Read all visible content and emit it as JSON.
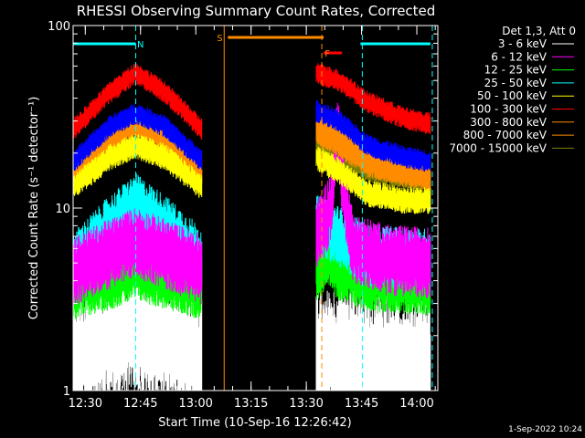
{
  "chart_data": {
    "type": "line",
    "title": "RHESSI Observing Summary Count Rates, Corrected",
    "xlabel": "Start Time (10-Sep-16 12:26:42)",
    "ylabel": "Corrected Count Rate (s⁻¹ detector⁻¹)",
    "yscale": "log",
    "ylim": [
      1,
      100
    ],
    "xlim_minutes": [
      0,
      99
    ],
    "x_ticks": [
      {
        "label": "12:30",
        "min": 3.3
      },
      {
        "label": "12:45",
        "min": 18.3
      },
      {
        "label": "13:00",
        "min": 33.3
      },
      {
        "label": "13:15",
        "min": 48.3
      },
      {
        "label": "13:30",
        "min": 63.3
      },
      {
        "label": "13:45",
        "min": 78.3
      },
      {
        "label": "14:00",
        "min": 93.3
      }
    ],
    "y_ticks": [
      {
        "label": "1",
        "value": 1
      },
      {
        "label": "10",
        "value": 10
      },
      {
        "label": "100",
        "value": 100
      }
    ],
    "legend_title": "Det 1,3, Att 0",
    "series": [
      {
        "name": "3 - 6 keV",
        "color": "#ffffff",
        "min": 1.2,
        "noise": 1.8,
        "seg1": [
          [
            0,
            1.5
          ],
          [
            10,
            1.9
          ],
          [
            17,
            2.2
          ],
          [
            25,
            1.9
          ],
          [
            35,
            1.5
          ]
        ],
        "seg2": [
          [
            66,
            1.4
          ],
          [
            72,
            1.6
          ],
          [
            80,
            1.5
          ],
          [
            90,
            1.4
          ],
          [
            97,
            1.4
          ]
        ]
      },
      {
        "name": "6 - 12 keV",
        "color": "#ff00ff",
        "min": 1.2,
        "noise": 1.35,
        "seg1": [
          [
            0,
            4.5
          ],
          [
            10,
            5.6
          ],
          [
            17,
            6.5
          ],
          [
            25,
            5.6
          ],
          [
            35,
            4.6
          ]
        ],
        "seg2": [
          [
            66,
            7
          ],
          [
            70,
            10
          ],
          [
            71.8,
            28
          ],
          [
            73,
            14
          ],
          [
            76,
            6
          ],
          [
            85,
            5.2
          ],
          [
            97,
            5
          ]
        ]
      },
      {
        "name": "12 - 25 keV",
        "color": "#00ff00",
        "min": 1.2,
        "noise": 1.3,
        "seg1": [
          [
            0,
            3.6
          ],
          [
            10,
            4.1
          ],
          [
            17,
            4.6
          ],
          [
            25,
            4.1
          ],
          [
            35,
            3.6
          ]
        ],
        "seg2": [
          [
            66,
            4.6
          ],
          [
            70,
            5.2
          ],
          [
            72,
            4.6
          ],
          [
            80,
            4
          ],
          [
            97,
            3.8
          ]
        ]
      },
      {
        "name": "25 - 50 keV",
        "color": "#00ffff",
        "min": 1.2,
        "noise": 1.3,
        "seg1": [
          [
            0,
            5
          ],
          [
            10,
            8
          ],
          [
            17,
            10.5
          ],
          [
            25,
            8
          ],
          [
            35,
            5.3
          ]
        ],
        "seg2": [
          [
            66,
            8
          ],
          [
            72,
            7
          ],
          [
            80,
            5.5
          ],
          [
            97,
            5.2
          ]
        ]
      },
      {
        "name": "50 - 100 keV",
        "color": "#ffff00",
        "min": 1.2,
        "noise": 1.12,
        "seg1": [
          [
            0,
            13
          ],
          [
            10,
            19
          ],
          [
            17,
            22
          ],
          [
            25,
            19
          ],
          [
            35,
            13
          ]
        ],
        "seg2": [
          [
            66,
            19
          ],
          [
            72,
            16
          ],
          [
            80,
            12
          ],
          [
            90,
            11
          ],
          [
            97,
            11
          ]
        ]
      },
      {
        "name": "100 - 300 keV",
        "color": "#ff0000",
        "min": 1.2,
        "noise": 1.1,
        "seg1": [
          [
            0,
            27
          ],
          [
            10,
            43
          ],
          [
            17,
            55
          ],
          [
            25,
            43
          ],
          [
            35,
            27
          ]
        ],
        "seg2": [
          [
            66,
            55
          ],
          [
            72,
            50
          ],
          [
            80,
            38
          ],
          [
            90,
            31
          ],
          [
            97,
            29
          ]
        ]
      },
      {
        "name": "300 - 800 keV",
        "color": "#ff8c00",
        "min": 1.2,
        "noise": 1.1,
        "seg1": [
          [
            0,
            15
          ],
          [
            10,
            23
          ],
          [
            17,
            28
          ],
          [
            25,
            23
          ],
          [
            35,
            15
          ]
        ],
        "seg2": [
          [
            66,
            26
          ],
          [
            72,
            22
          ],
          [
            80,
            17
          ],
          [
            90,
            15
          ],
          [
            97,
            14
          ]
        ]
      },
      {
        "name": "800 - 7000 keV",
        "color": "#ff8c00",
        "min": 1.2,
        "noise": 1.1,
        "seg1": [
          [
            0,
            17
          ],
          [
            10,
            26
          ],
          [
            17,
            30
          ],
          [
            25,
            26
          ],
          [
            35,
            17
          ]
        ],
        "seg2": [
          [
            66,
            30
          ],
          [
            72,
            26
          ],
          [
            80,
            19
          ],
          [
            90,
            17
          ],
          [
            97,
            16
          ]
        ]
      },
      {
        "name": "7000 - 15000 keV",
        "color": "#808000",
        "min": 1.2,
        "noise": 1.12,
        "seg1": [
          [
            0,
            15
          ],
          [
            10,
            19
          ],
          [
            17,
            22
          ],
          [
            25,
            19
          ],
          [
            35,
            15
          ]
        ],
        "seg2": [
          [
            66,
            21
          ],
          [
            72,
            19
          ],
          [
            80,
            16
          ],
          [
            97,
            14
          ]
        ]
      }
    ],
    "blue_band": {
      "color": "#0000ff",
      "seg1": [
        [
          0,
          18
        ],
        [
          10,
          28
        ],
        [
          17,
          33
        ],
        [
          25,
          28
        ],
        [
          35,
          18
        ]
      ],
      "seg2": [
        [
          66,
          34
        ],
        [
          72,
          30
        ],
        [
          80,
          22
        ],
        [
          90,
          19
        ],
        [
          97,
          18
        ]
      ]
    },
    "annotations": [
      {
        "label": "N",
        "color": "#00ffff",
        "at_min": 18.3
      },
      {
        "label": "S",
        "color": "#ff8c00",
        "at_min": 39.8
      },
      {
        "label": "F",
        "color": "#ff8c00",
        "at_min": 69.0
      }
    ],
    "night_intervals": [
      [
        0,
        17
      ],
      [
        78,
        97
      ]
    ],
    "saa_interval": [
      42,
      68
    ],
    "flare_interval": [
      68,
      73
    ],
    "vlines_min": {
      "cyan": [
        17.0,
        97.5,
        78.5
      ],
      "orange_solid": [
        41.0
      ],
      "orange_dashed": [
        67.5
      ]
    }
  },
  "footer": {
    "timestamp": "1-Sep-2022 10:24"
  },
  "colors": {
    "background": "#000000",
    "axes": "#ffffff"
  }
}
